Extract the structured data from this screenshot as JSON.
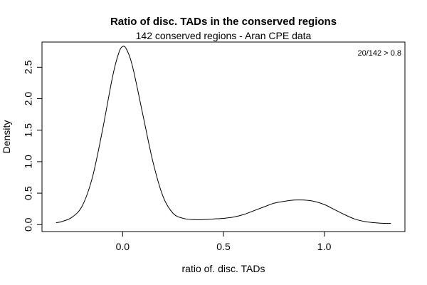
{
  "chart_data": {
    "type": "line",
    "title": "Ratio of disc. TADs in the conserved regions",
    "subtitle": "142 conserved regions - Aran CPE data",
    "xlabel": "ratio of. disc. TADs",
    "ylabel": "Density",
    "annotation": "20/142 > 0.8",
    "xlim": [
      -0.4,
      1.4
    ],
    "ylim": [
      -0.11,
      2.9
    ],
    "x_ticks": [
      0.0,
      0.5,
      1.0
    ],
    "x_tick_labels": [
      "0.0",
      "0.5",
      "1.0"
    ],
    "y_ticks": [
      0.0,
      0.5,
      1.0,
      1.5,
      2.0,
      2.5
    ],
    "y_tick_labels": [
      "0.0",
      "0.5",
      "1.0",
      "1.5",
      "2.0",
      "2.5"
    ],
    "grid": false,
    "legend": "none",
    "series": [
      {
        "x": [
          -0.33,
          -0.3,
          -0.25,
          -0.2,
          -0.15,
          -0.1,
          -0.05,
          -0.02,
          0.0,
          0.02,
          0.05,
          0.1,
          0.15,
          0.2,
          0.25,
          0.3,
          0.35,
          0.4,
          0.45,
          0.5,
          0.55,
          0.6,
          0.65,
          0.7,
          0.75,
          0.8,
          0.85,
          0.9,
          0.95,
          1.0,
          1.05,
          1.1,
          1.15,
          1.2,
          1.25,
          1.3,
          1.33
        ],
        "y": [
          0.03,
          0.05,
          0.12,
          0.3,
          0.75,
          1.5,
          2.35,
          2.72,
          2.83,
          2.78,
          2.5,
          1.75,
          1.0,
          0.45,
          0.18,
          0.1,
          0.08,
          0.08,
          0.09,
          0.1,
          0.12,
          0.16,
          0.22,
          0.28,
          0.34,
          0.37,
          0.39,
          0.39,
          0.37,
          0.32,
          0.24,
          0.16,
          0.09,
          0.05,
          0.03,
          0.02,
          0.02
        ]
      }
    ]
  }
}
